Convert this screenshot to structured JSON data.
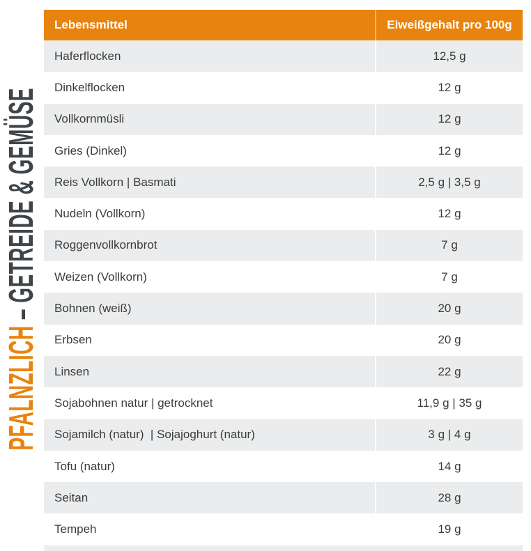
{
  "side_label": {
    "highlight": "PFALNZLICH",
    "rest": " – GETREIDE & GEMÜSE"
  },
  "colors": {
    "accent": "#E8830E",
    "row_alt": "#EBECED",
    "body_text": "#3B3B3B",
    "header_text": "#FFFFFF",
    "side_text": "#3F4449"
  },
  "chart_data": {
    "type": "table",
    "title": "PFALNZLICH – GETREIDE & GEMÜSE",
    "columns": [
      "Lebensmittel",
      "Eiweißgehalt pro 100g"
    ],
    "rows": [
      {
        "label": "Haferflocken",
        "value": "12,5 g"
      },
      {
        "label": "Dinkelflocken",
        "value": "12 g"
      },
      {
        "label": "Vollkornmüsli",
        "value": "12 g"
      },
      {
        "label": "Gries (Dinkel)",
        "value": "12 g"
      },
      {
        "label": "Reis Vollkorn | Basmati",
        "value": "2,5 g | 3,5 g"
      },
      {
        "label": "Nudeln (Vollkorn)",
        "value": "12 g"
      },
      {
        "label": "Roggenvollkornbrot",
        "value": "7 g"
      },
      {
        "label": "Weizen (Vollkorn)",
        "value": "7 g"
      },
      {
        "label": "Bohnen (weiß)",
        "value": "20 g"
      },
      {
        "label": "Erbsen",
        "value": "20 g"
      },
      {
        "label": "Linsen",
        "value": "22 g"
      },
      {
        "label": "Sojabohnen natur | getrocknet",
        "value": "11,9 g | 35 g"
      },
      {
        "label": "Sojamilch (natur)  | Sojajoghurt (natur)",
        "value": "3 g | 4 g"
      },
      {
        "label": "Tofu (natur)",
        "value": "14 g"
      },
      {
        "label": "Seitan",
        "value": "28 g"
      },
      {
        "label": "Tempeh",
        "value": "19 g"
      }
    ]
  }
}
